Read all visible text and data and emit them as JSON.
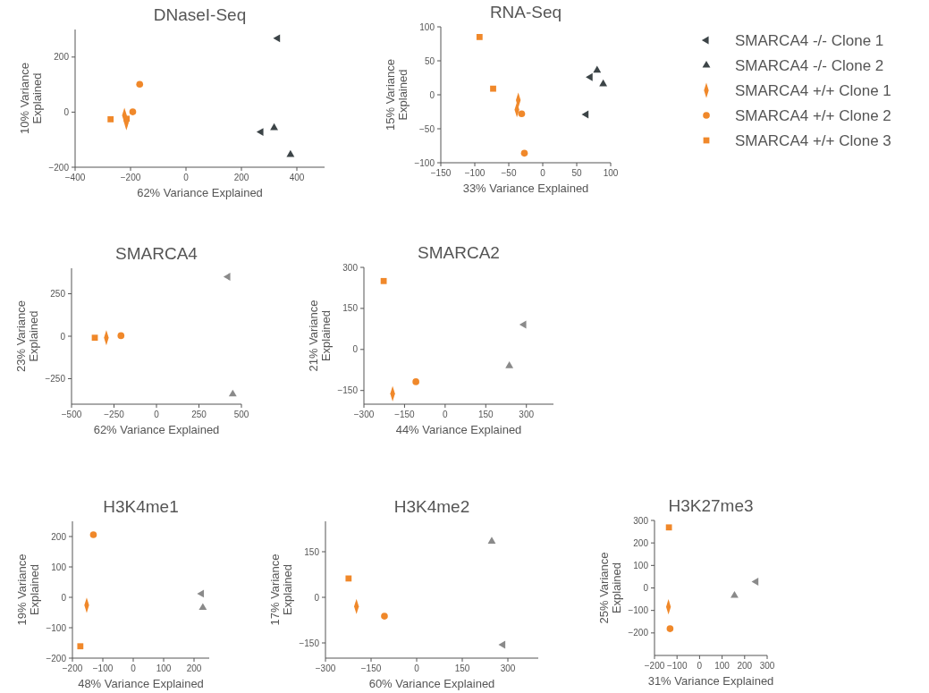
{
  "chart_data": [
    {
      "type": "scatter",
      "title": "DNaseI-Seq",
      "xlabel": "62% Variance Explained",
      "ylabel": "10% Variance Explained",
      "xlim": [
        -400,
        500
      ],
      "ylim": [
        -200,
        300
      ],
      "xticks": [
        -400,
        -200,
        0,
        200,
        400
      ],
      "yticks": [
        -200,
        0,
        200
      ],
      "grid": false,
      "legend": false,
      "series": [
        {
          "color": "#3c4447",
          "marker": "triangle",
          "x": [
            331,
            271
          ],
          "values": [
            268,
            -72
          ]
        },
        {
          "color": "#3c4447",
          "marker": "triangle",
          "x": [
            318,
            377
          ],
          "values": [
            -57,
            -154
          ]
        },
        {
          "color": "#f0882a",
          "marker": "diamond",
          "x": [
            -222,
            -215
          ],
          "values": [
            -12,
            -38
          ]
        },
        {
          "color": "#f0882a",
          "marker": "circle",
          "x": [
            -167,
            -192
          ],
          "values": [
            101,
            1
          ]
        },
        {
          "color": "#f0882a",
          "marker": "square",
          "x": [
            -272,
            -214
          ],
          "values": [
            -26,
            -24
          ]
        }
      ]
    },
    {
      "type": "scatter",
      "title": "RNA-Seq",
      "xlabel": "33% Variance Explained",
      "ylabel": "15% Variance Explained",
      "xlim": [
        -150,
        100
      ],
      "ylim": [
        -100,
        100
      ],
      "xticks": [
        -150,
        -100,
        -50,
        0,
        50,
        100
      ],
      "yticks": [
        -100,
        -50,
        0,
        50,
        100
      ],
      "grid": false,
      "legend": "right",
      "series": [
        {
          "name": "SMARCA4 -/- Clone 1",
          "color": "#3c4447",
          "marker": "triangle",
          "x": [
            70,
            64
          ],
          "values": [
            26,
            -29
          ]
        },
        {
          "name": "SMARCA4 -/- Clone 2",
          "color": "#3c4447",
          "marker": "triangle",
          "x": [
            80,
            89
          ],
          "values": [
            36,
            16
          ]
        },
        {
          "name": "SMARCA4 +/+ Clone 1",
          "color": "#f0882a",
          "marker": "diamond",
          "x": [
            -36,
            -38
          ],
          "values": [
            -8,
            -22
          ]
        },
        {
          "name": "SMARCA4 +/+ Clone 2",
          "color": "#f0882a",
          "marker": "circle",
          "x": [
            -31,
            -27
          ],
          "values": [
            -28,
            -86
          ]
        },
        {
          "name": "SMARCA4 +/+ Clone 3",
          "color": "#f0882a",
          "marker": "square",
          "x": [
            -93,
            -73
          ],
          "values": [
            85,
            9
          ]
        }
      ]
    },
    {
      "type": "scatter",
      "title": "SMARCA4",
      "xlabel": "62% Variance Explained",
      "ylabel": "23% Variance Explained",
      "xlim": [
        -500,
        500
      ],
      "ylim": [
        -400,
        400
      ],
      "xticks": [
        -500,
        -250,
        0,
        250,
        500
      ],
      "yticks": [
        -250,
        0,
        250
      ],
      "grid": false,
      "legend": false,
      "series": [
        {
          "color": "#8a8a8a",
          "marker": "triangle",
          "x": [
            421
          ],
          "values": [
            350
          ]
        },
        {
          "color": "#8a8a8a",
          "marker": "triangle",
          "x": [
            449
          ],
          "values": [
            -341
          ]
        },
        {
          "color": "#f0882a",
          "marker": "diamond",
          "x": [
            -295
          ],
          "values": [
            -9
          ]
        },
        {
          "color": "#f0882a",
          "marker": "circle",
          "x": [
            -209
          ],
          "values": [
            3
          ]
        },
        {
          "color": "#f0882a",
          "marker": "square",
          "x": [
            -363
          ],
          "values": [
            -9
          ]
        }
      ]
    },
    {
      "type": "scatter",
      "title": "SMARCA2",
      "xlabel": "44% Variance Explained",
      "ylabel": "21% Variance Explained",
      "xlim": [
        -300,
        400
      ],
      "ylim": [
        -200,
        300
      ],
      "xticks": [
        -300,
        -150,
        0,
        150,
        300
      ],
      "yticks": [
        -150,
        0,
        150,
        300
      ],
      "grid": false,
      "legend": false,
      "series": [
        {
          "color": "#8a8a8a",
          "marker": "triangle",
          "x": [
            291
          ],
          "values": [
            91
          ]
        },
        {
          "color": "#8a8a8a",
          "marker": "triangle",
          "x": [
            237
          ],
          "values": [
            -60
          ]
        },
        {
          "color": "#f0882a",
          "marker": "diamond",
          "x": [
            -194
          ],
          "values": [
            -162
          ]
        },
        {
          "color": "#f0882a",
          "marker": "circle",
          "x": [
            -108
          ],
          "values": [
            -118
          ]
        },
        {
          "color": "#f0882a",
          "marker": "square",
          "x": [
            -227
          ],
          "values": [
            250
          ]
        }
      ]
    },
    {
      "type": "scatter",
      "title": "H3K4me1",
      "xlabel": "48% Variance Explained",
      "ylabel": "19% Variance Explained",
      "xlim": [
        -200,
        250
      ],
      "ylim": [
        -200,
        250
      ],
      "xticks": [
        -200,
        -100,
        0,
        100,
        200
      ],
      "yticks": [
        -200,
        -100,
        0,
        100,
        200
      ],
      "grid": false,
      "legend": false,
      "series": [
        {
          "color": "#8a8a8a",
          "marker": "triangle",
          "x": [
            225
          ],
          "values": [
            12
          ]
        },
        {
          "color": "#8a8a8a",
          "marker": "triangle",
          "x": [
            229
          ],
          "values": [
            -34
          ]
        },
        {
          "color": "#f0882a",
          "marker": "diamond",
          "x": [
            -153
          ],
          "values": [
            -26
          ]
        },
        {
          "color": "#f0882a",
          "marker": "circle",
          "x": [
            -131
          ],
          "values": [
            206
          ]
        },
        {
          "color": "#f0882a",
          "marker": "square",
          "x": [
            -174
          ],
          "values": [
            -161
          ]
        }
      ]
    },
    {
      "type": "scatter",
      "title": "H3K4me2",
      "xlabel": "60% Variance Explained",
      "ylabel": "17% Variance Explained",
      "xlim": [
        -300,
        400
      ],
      "ylim": [
        -200,
        250
      ],
      "xticks": [
        -300,
        -150,
        0,
        150,
        300
      ],
      "yticks": [
        -150,
        0,
        150
      ],
      "grid": false,
      "legend": false,
      "series": [
        {
          "color": "#8a8a8a",
          "marker": "triangle",
          "x": [
            284
          ],
          "values": [
            -156
          ]
        },
        {
          "color": "#8a8a8a",
          "marker": "triangle",
          "x": [
            247
          ],
          "values": [
            184
          ]
        },
        {
          "color": "#f0882a",
          "marker": "diamond",
          "x": [
            -198
          ],
          "values": [
            -30
          ]
        },
        {
          "color": "#f0882a",
          "marker": "circle",
          "x": [
            -106
          ],
          "values": [
            -62
          ]
        },
        {
          "color": "#f0882a",
          "marker": "square",
          "x": [
            -224
          ],
          "values": [
            62
          ]
        }
      ]
    },
    {
      "type": "scatter",
      "title": "H3K27me3",
      "xlabel": "31% Variance Explained",
      "ylabel": "25% Variance Explained",
      "xlim": [
        -200,
        300
      ],
      "ylim": [
        -300,
        300
      ],
      "xticks": [
        -200,
        -100,
        0,
        100,
        200,
        300
      ],
      "yticks": [
        -200,
        -100,
        0,
        100,
        200,
        300
      ],
      "grid": false,
      "legend": false,
      "series": [
        {
          "color": "#8a8a8a",
          "marker": "triangle",
          "x": [
            251
          ],
          "values": [
            28
          ]
        },
        {
          "color": "#8a8a8a",
          "marker": "triangle",
          "x": [
            155
          ],
          "values": [
            -34
          ]
        },
        {
          "color": "#f0882a",
          "marker": "diamond",
          "x": [
            -138
          ],
          "values": [
            -84
          ]
        },
        {
          "color": "#f0882a",
          "marker": "circle",
          "x": [
            -131
          ],
          "values": [
            -181
          ]
        },
        {
          "color": "#f0882a",
          "marker": "square",
          "x": [
            -136
          ],
          "values": [
            269
          ]
        }
      ]
    }
  ]
}
